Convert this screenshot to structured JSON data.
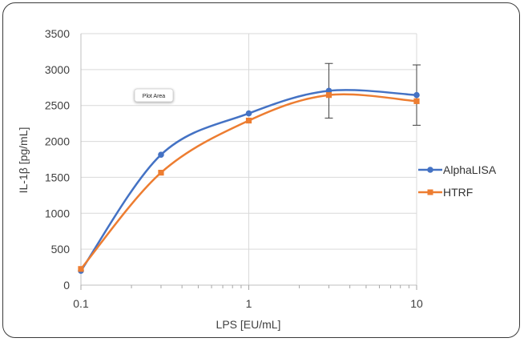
{
  "chart_data": {
    "type": "line",
    "xlabel": "LPS [EU/mL]",
    "ylabel": "IL-1β [pg/mL]",
    "x_scale": "log",
    "xlim": [
      0.1,
      10
    ],
    "ylim": [
      0,
      3500
    ],
    "x_ticks": [
      0.1,
      1,
      10
    ],
    "x_tick_labels": [
      "0.1",
      "1",
      "10"
    ],
    "y_ticks": [
      0,
      500,
      1000,
      1500,
      2000,
      2500,
      3000,
      3500
    ],
    "y_tick_labels": [
      "0",
      "500",
      "1000",
      "1500",
      "2000",
      "2500",
      "3000",
      "3500"
    ],
    "grid": true,
    "legend_position": "right",
    "series": [
      {
        "name": "AlphaLISA",
        "color": "#4472C4",
        "marker": "circle",
        "x": [
          0.1,
          0.3,
          1,
          3,
          10
        ],
        "values": [
          200,
          1815,
          2390,
          2705,
          2645
        ],
        "error": [
          null,
          null,
          null,
          380,
          420
        ]
      },
      {
        "name": "HTRF",
        "color": "#ED7D31",
        "marker": "square",
        "x": [
          0.1,
          0.3,
          1,
          3,
          10
        ],
        "values": [
          225,
          1565,
          2290,
          2645,
          2560
        ],
        "error": [
          null,
          null,
          null,
          null,
          null
        ]
      }
    ],
    "annotations": [
      {
        "text": "Plot Area"
      }
    ]
  }
}
